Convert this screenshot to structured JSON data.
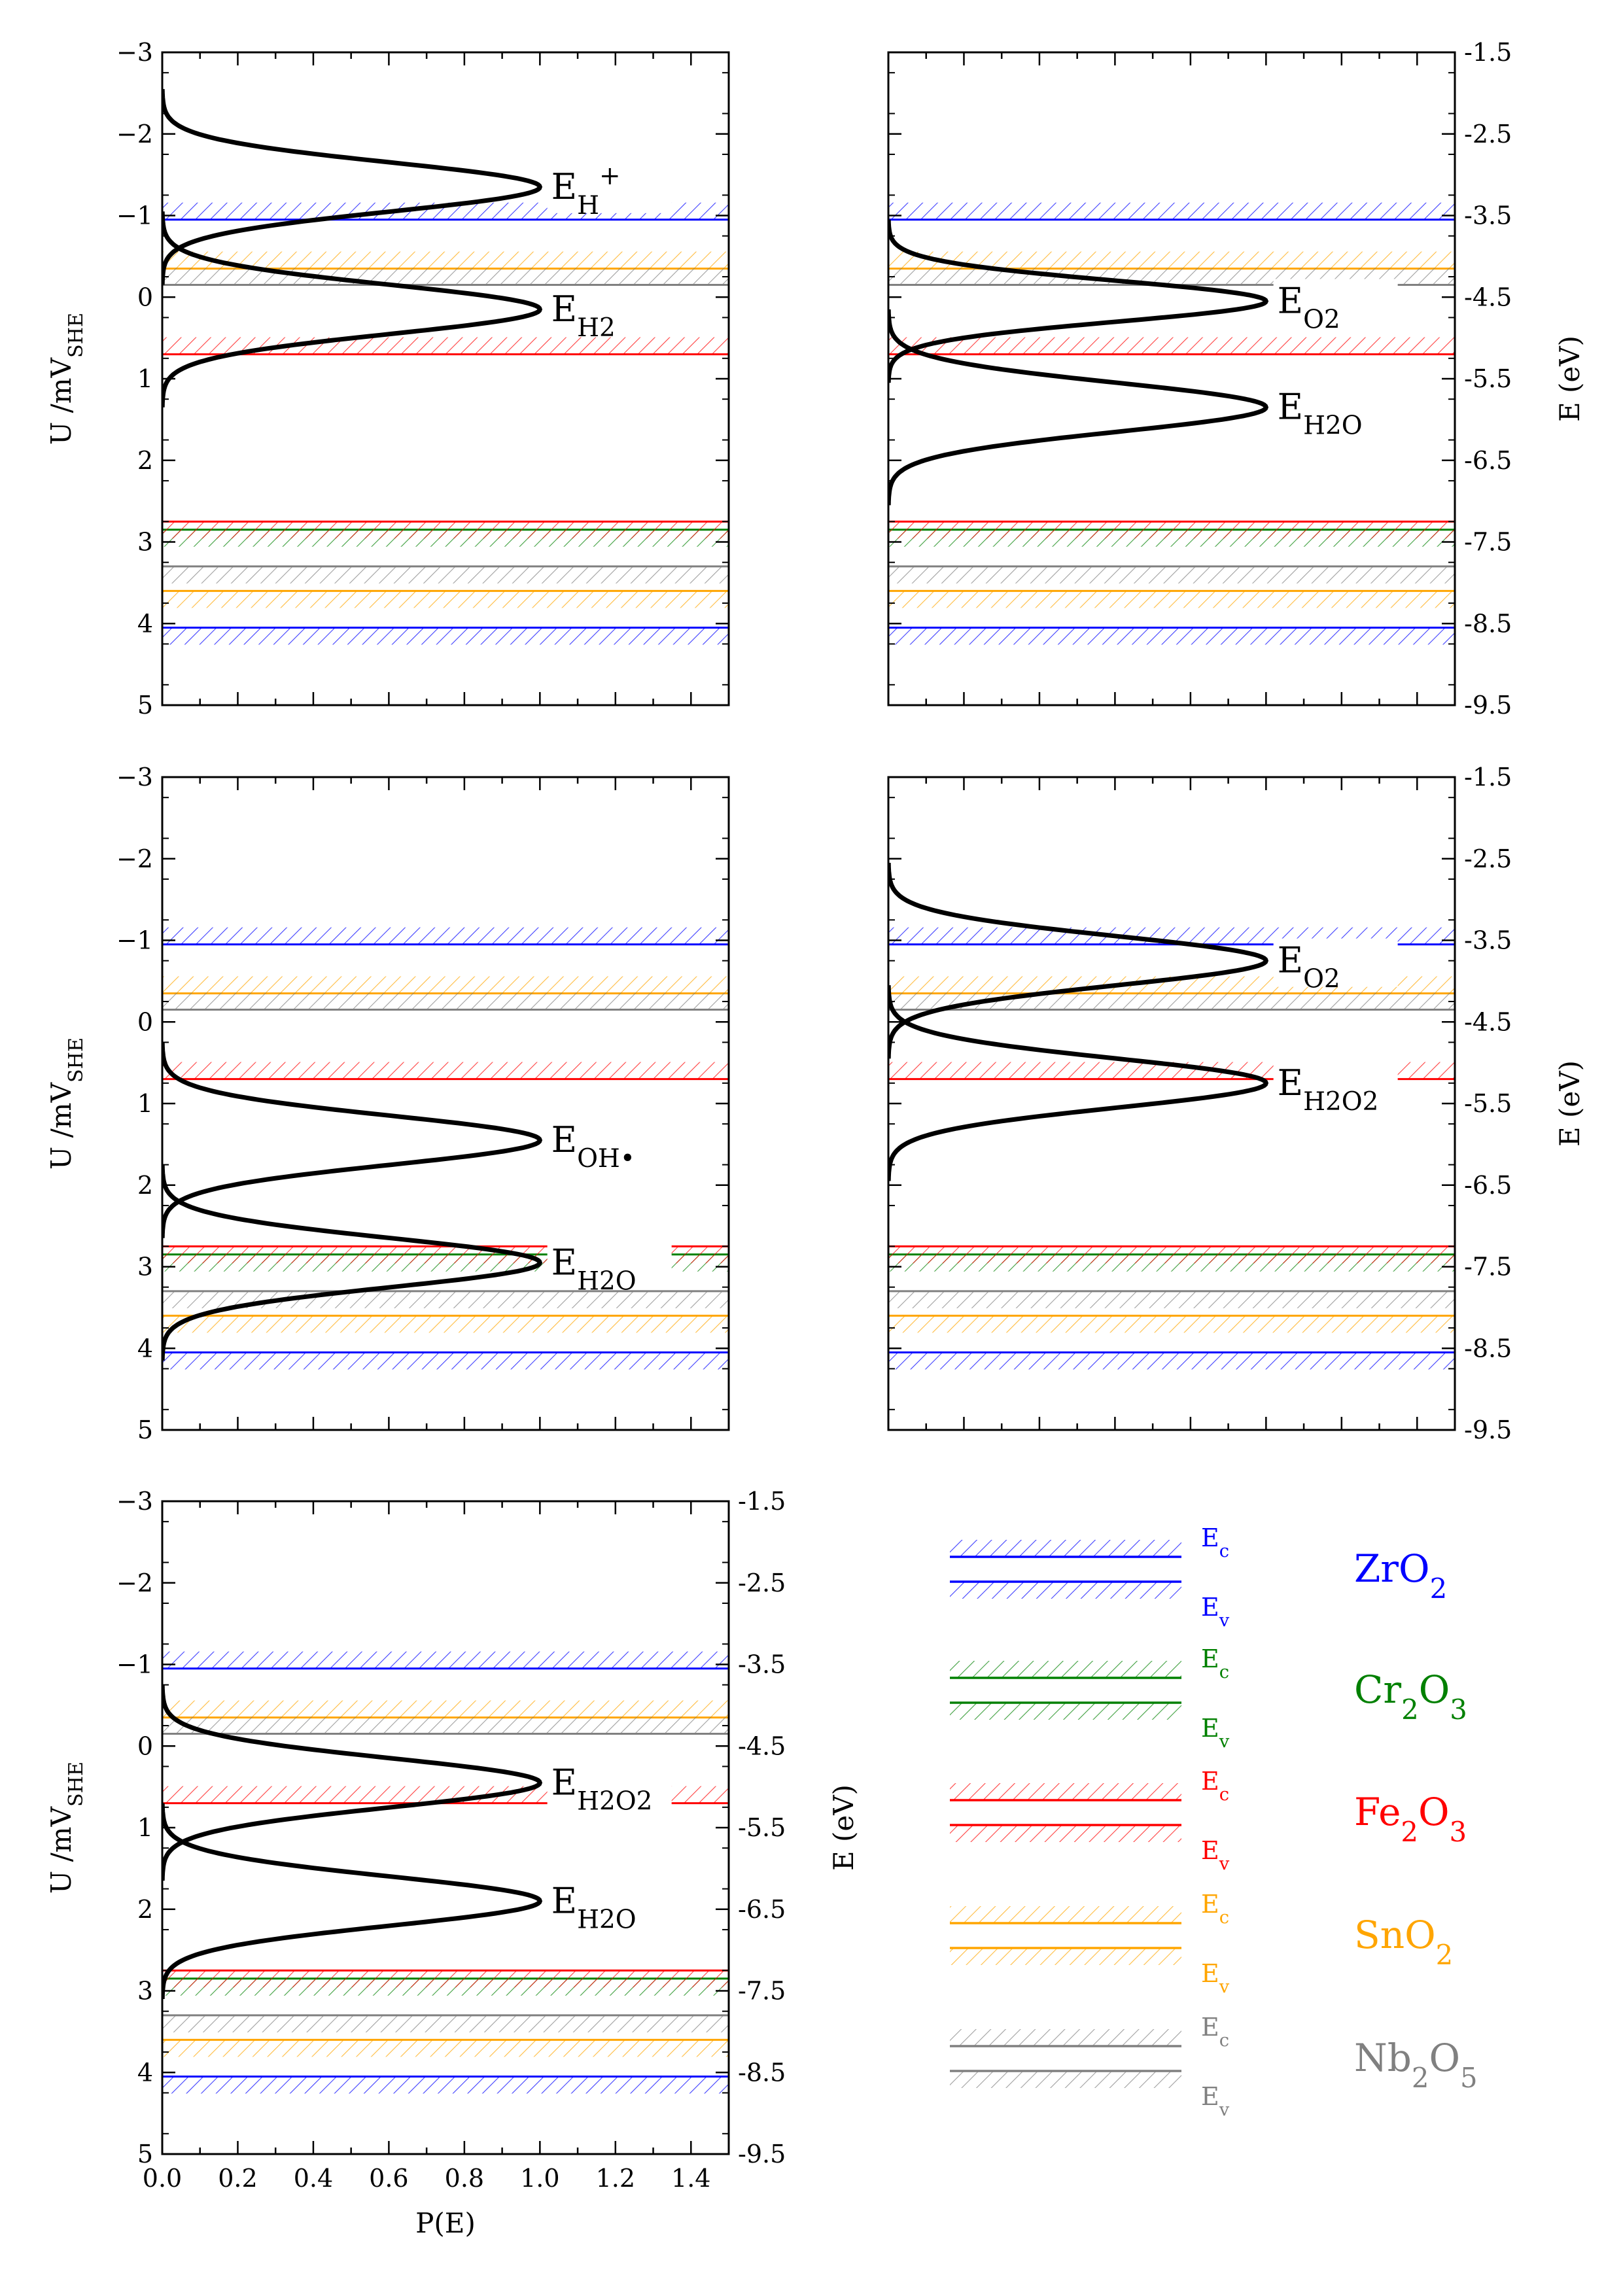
{
  "chart_data": [
    {
      "type": "line",
      "panel": "top-left",
      "ylabel": "U /mV_SHE",
      "ylim": [
        5,
        -3
      ],
      "xlim": [
        0,
        1.5
      ],
      "yticks": [
        "−3",
        "−2",
        "−1",
        "0",
        "1",
        "2",
        "3",
        "4",
        "5"
      ],
      "series": [
        {
          "label": "E_H+",
          "label_main": "E",
          "label_sub": "H",
          "label_sup": "+",
          "peaks": [
            {
              "mean": -1.35,
              "sigma": 0.3
            }
          ]
        },
        {
          "label": "E_H2",
          "label_main": "E",
          "label_sub": "H2",
          "peaks": [
            {
              "mean": 0.15,
              "sigma": 0.3
            }
          ]
        }
      ]
    },
    {
      "type": "line",
      "panel": "top-right",
      "ylabel": "E (eV)",
      "ylim": [
        -9.5,
        -1.5
      ],
      "xlim": [
        0,
        1.5
      ],
      "yticks": [
        "-1.5",
        "-2.5",
        "-3.5",
        "-4.5",
        "-5.5",
        "-6.5",
        "-7.5",
        "-8.5",
        "-9.5"
      ],
      "series": [
        {
          "label": "E_O2",
          "label_main": "E",
          "label_sub": "O2",
          "peaks": [
            {
              "mean": 0.05,
              "sigma": 0.25
            }
          ]
        },
        {
          "label": "E_H2O",
          "label_main": "E",
          "label_sub": "H2O",
          "peaks": [
            {
              "mean": 1.35,
              "sigma": 0.3
            }
          ]
        }
      ]
    },
    {
      "type": "line",
      "panel": "middle-left",
      "ylabel": "U /mV_SHE",
      "ylim": [
        5,
        -3
      ],
      "xlim": [
        0,
        1.5
      ],
      "yticks": [
        "−3",
        "−2",
        "−1",
        "0",
        "1",
        "2",
        "3",
        "4",
        "5"
      ],
      "series": [
        {
          "label": "E_OH•",
          "label_main": "E",
          "label_sub": "OH•",
          "peaks": [
            {
              "mean": 1.45,
              "sigma": 0.3
            }
          ]
        },
        {
          "label": "E_H2O",
          "label_main": "E",
          "label_sub": "H2O",
          "peaks": [
            {
              "mean": 2.95,
              "sigma": 0.3
            }
          ]
        }
      ]
    },
    {
      "type": "line",
      "panel": "middle-right",
      "ylabel": "E (eV)",
      "ylim": [
        -9.5,
        -1.5
      ],
      "xlim": [
        0,
        1.5
      ],
      "yticks": [
        "-1.5",
        "-2.5",
        "-3.5",
        "-4.5",
        "-5.5",
        "-6.5",
        "-7.5",
        "-8.5",
        "-9.5"
      ],
      "series": [
        {
          "label": "E_O2",
          "label_main": "E",
          "label_sub": "O2",
          "peaks": [
            {
              "mean": -0.75,
              "sigma": 0.3
            }
          ]
        },
        {
          "label": "E_H2O2",
          "label_main": "E",
          "label_sub": "H2O2",
          "peaks": [
            {
              "mean": 0.75,
              "sigma": 0.3
            }
          ]
        }
      ]
    },
    {
      "type": "line",
      "panel": "bottom-left",
      "xlabel": "P(E)",
      "ylabel_left": "U /mV_SHE",
      "ylabel_right": "E (eV)",
      "ylim": [
        5,
        -3
      ],
      "xlim": [
        0,
        1.5
      ],
      "xticks": [
        "0.0",
        "0.2",
        "0.4",
        "0.6",
        "0.8",
        "1.0",
        "1.2",
        "1.4"
      ],
      "yticks": [
        "−3",
        "−2",
        "−1",
        "0",
        "1",
        "2",
        "3",
        "4",
        "5"
      ],
      "yticks_right": [
        "-1.5",
        "-2.5",
        "-3.5",
        "-4.5",
        "-5.5",
        "-6.5",
        "-7.5",
        "-8.5",
        "-9.5"
      ],
      "series": [
        {
          "label": "E_H2O2",
          "label_main": "E",
          "label_sub": "H2O2",
          "peaks": [
            {
              "mean": 0.45,
              "sigma": 0.3
            }
          ]
        },
        {
          "label": "E_H2O",
          "label_main": "E",
          "label_sub": "H2O",
          "peaks": [
            {
              "mean": 1.9,
              "sigma": 0.3
            }
          ]
        }
      ]
    }
  ],
  "band_edges": [
    {
      "material": "ZrO2",
      "main": "ZrO",
      "sub": "2",
      "color": "#0000ff",
      "Ec": -0.95,
      "Ev": 4.05
    },
    {
      "material": "Cr2O3",
      "main": "Cr",
      "sub": "2",
      "main2": "O",
      "sub2": "3",
      "color": "#008000",
      "Ec": null,
      "Ev": 2.85
    },
    {
      "material": "Fe2O3",
      "main": "Fe",
      "sub": "2",
      "main2": "O",
      "sub2": "3",
      "color": "#ff0000",
      "Ec": 0.7,
      "Ev": 2.75
    },
    {
      "material": "SnO2",
      "main": "SnO",
      "sub": "2",
      "color": "#ffa500",
      "Ec": -0.35,
      "Ev": 3.6
    },
    {
      "material": "Nb2O5",
      "main": "Nb",
      "sub": "2",
      "main2": "O",
      "sub2": "5",
      "color": "#808080",
      "Ec": -0.15,
      "Ev": 3.3
    }
  ],
  "legend": {
    "Ec_main": "E",
    "Ec_sub": "c",
    "Ev_main": "E",
    "Ev_sub": "v"
  },
  "axis_text": {
    "U_main": "U /mV",
    "U_sub": "SHE",
    "E_label": "E (eV)",
    "P_label": "P(E)"
  }
}
